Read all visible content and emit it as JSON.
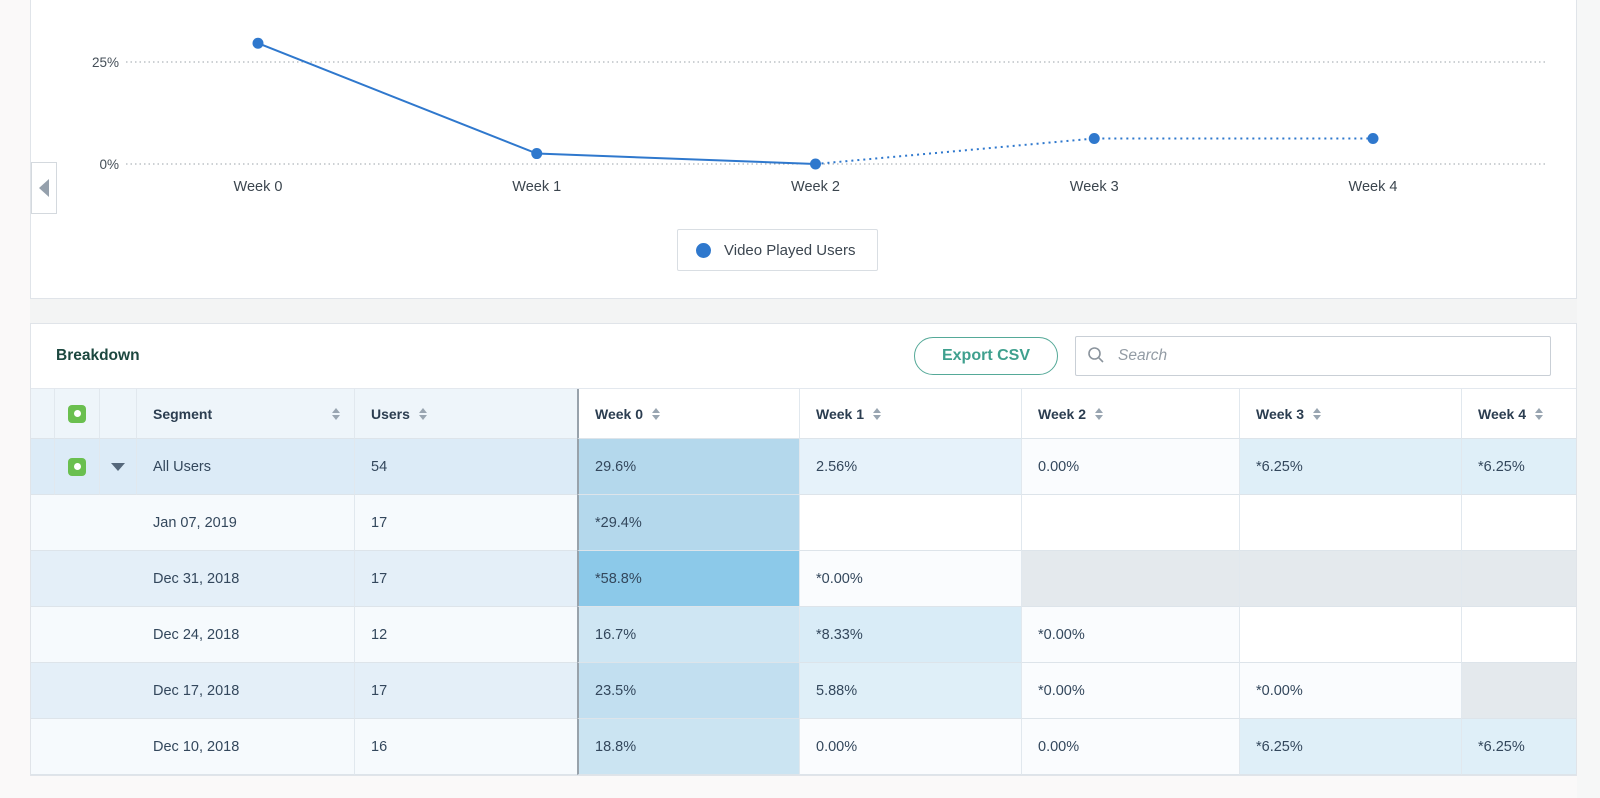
{
  "chart": {
    "legend_label": "Video Played Users"
  },
  "chart_data": {
    "type": "line",
    "title": "",
    "x": [
      "Week 0",
      "Week 1",
      "Week 2",
      "Week 3",
      "Week 4"
    ],
    "series": [
      {
        "name": "Video Played Users",
        "color": "#2f78cd",
        "values": [
          29.6,
          2.56,
          0.0,
          6.25,
          6.25
        ]
      }
    ],
    "dotted_from_index": 2,
    "ytick_labels": [
      "25%",
      "0%"
    ],
    "yticks": [
      25,
      0
    ],
    "ylim": [
      0,
      31
    ],
    "grid": true,
    "gridline_style": "dotted",
    "legend_position": "bottom-center",
    "note": "Values for Week 3 and Week 4 are partial (drawn dotted, marked with * in table)"
  },
  "breakdown": {
    "title": "Breakdown",
    "export_label": "Export CSV",
    "search_placeholder": "Search",
    "columns": {
      "segment": "Segment",
      "users": "Users",
      "weeks": [
        "Week 0",
        "Week 1",
        "Week 2",
        "Week 3",
        "Week 4"
      ]
    },
    "rows": [
      {
        "segment": "All Users",
        "users": "54",
        "expandable": true,
        "row_bg": "#dcebf7",
        "weeks": [
          {
            "text": "29.6%",
            "bg": "#b4d8ec"
          },
          {
            "text": "2.56%",
            "bg": "#e6f2fa"
          },
          {
            "text": "0.00%",
            "bg": "#fafcfe"
          },
          {
            "text": "*6.25%",
            "bg": "#dfeff8"
          },
          {
            "text": "*6.25%",
            "bg": "#dfeff8"
          }
        ]
      },
      {
        "segment": "Jan 07, 2019",
        "users": "17",
        "row_bg": "#f6fafd",
        "weeks": [
          {
            "text": "*29.4%",
            "bg": "#b4d8ec"
          },
          {
            "text": "",
            "bg": "#ffffff"
          },
          {
            "text": "",
            "bg": "#ffffff"
          },
          {
            "text": "",
            "bg": "#ffffff"
          },
          {
            "text": "",
            "bg": "#ffffff"
          }
        ]
      },
      {
        "segment": "Dec 31, 2018",
        "users": "17",
        "row_bg": "#e4eff8",
        "weeks": [
          {
            "text": "*58.8%",
            "bg": "#8cc9e9"
          },
          {
            "text": "*0.00%",
            "bg": "#fafcfe"
          },
          {
            "text": "",
            "bg": "#e4e9ed"
          },
          {
            "text": "",
            "bg": "#e4e9ed"
          },
          {
            "text": "",
            "bg": "#e4e9ed"
          }
        ]
      },
      {
        "segment": "Dec 24, 2018",
        "users": "12",
        "row_bg": "#f6fafd",
        "weeks": [
          {
            "text": "16.7%",
            "bg": "#cfe6f3"
          },
          {
            "text": "*8.33%",
            "bg": "#d9ecf7"
          },
          {
            "text": "*0.00%",
            "bg": "#fafcfe"
          },
          {
            "text": "",
            "bg": "#ffffff"
          },
          {
            "text": "",
            "bg": "#ffffff"
          }
        ]
      },
      {
        "segment": "Dec 17, 2018",
        "users": "17",
        "row_bg": "#e4eff8",
        "weeks": [
          {
            "text": "23.5%",
            "bg": "#c2dff0"
          },
          {
            "text": "5.88%",
            "bg": "#dfeff8"
          },
          {
            "text": "*0.00%",
            "bg": "#fafcfe"
          },
          {
            "text": "*0.00%",
            "bg": "#fafcfe"
          },
          {
            "text": "",
            "bg": "#e4e9ed"
          }
        ]
      },
      {
        "segment": "Dec 10, 2018",
        "users": "16",
        "row_bg": "#f6fafd",
        "weeks": [
          {
            "text": "18.8%",
            "bg": "#cbe4f2"
          },
          {
            "text": "0.00%",
            "bg": "#fafcfe"
          },
          {
            "text": "0.00%",
            "bg": "#fafcfe"
          },
          {
            "text": "*6.25%",
            "bg": "#dfeff8"
          },
          {
            "text": "*6.25%",
            "bg": "#dfeff8"
          }
        ]
      }
    ]
  },
  "colors": {
    "series_blue": "#2f78cd",
    "export_teal": "#3fa08e",
    "checkbox_green": "#6abf4f",
    "future_cell_gray": "#e4e9ed",
    "heat_max": "#8cc9e9",
    "heat_min": "#fafcfe"
  }
}
